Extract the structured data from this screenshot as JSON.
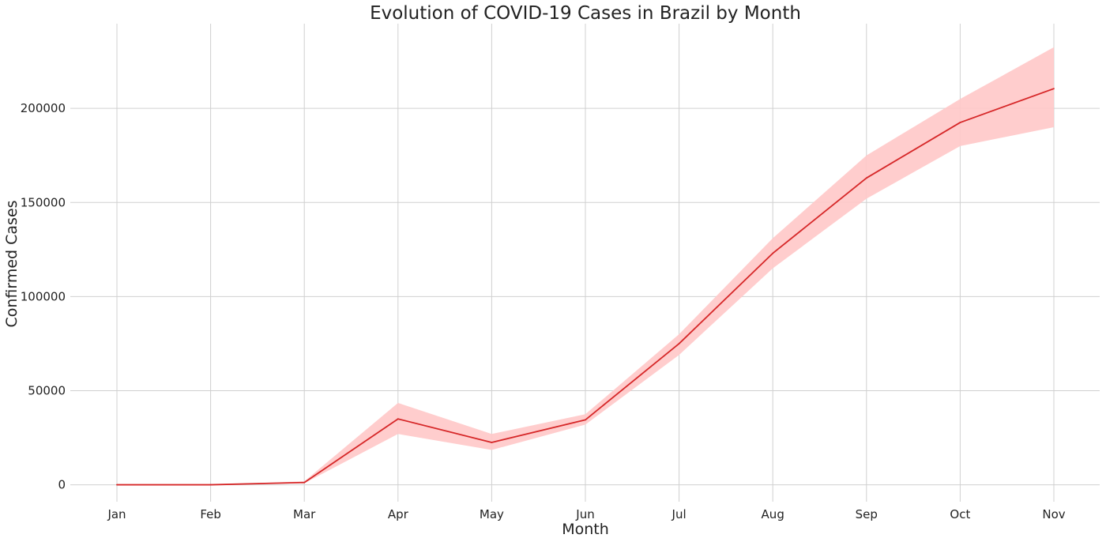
{
  "chart_data": {
    "type": "line",
    "title": "Evolution of COVID-19 Cases in Brazil by Month",
    "xlabel": "Month",
    "ylabel": "Confirmed Cases",
    "categories": [
      "Jan",
      "Feb",
      "Mar",
      "Apr",
      "May",
      "Jun",
      "Jul",
      "Aug",
      "Sep",
      "Oct",
      "Nov"
    ],
    "yticks": [
      "0",
      "50000",
      "100000",
      "150000",
      "200000"
    ],
    "ytick_values": [
      0,
      50000,
      100000,
      150000,
      200000
    ],
    "ylim": [
      -9000,
      245000
    ],
    "grid": true,
    "series": [
      {
        "values": [
          0,
          0,
          1200,
          35000,
          22500,
          34500,
          75000,
          123000,
          163000,
          192500,
          210500
        ],
        "band_lower": [
          0,
          0,
          800,
          27000,
          18500,
          32000,
          69000,
          115000,
          152000,
          180000,
          190000
        ],
        "band_upper": [
          0,
          0,
          1800,
          43500,
          27000,
          37500,
          80000,
          131000,
          175000,
          205000,
          232500
        ],
        "color": "#d62728",
        "band_color": "#ffc8c8"
      }
    ]
  }
}
